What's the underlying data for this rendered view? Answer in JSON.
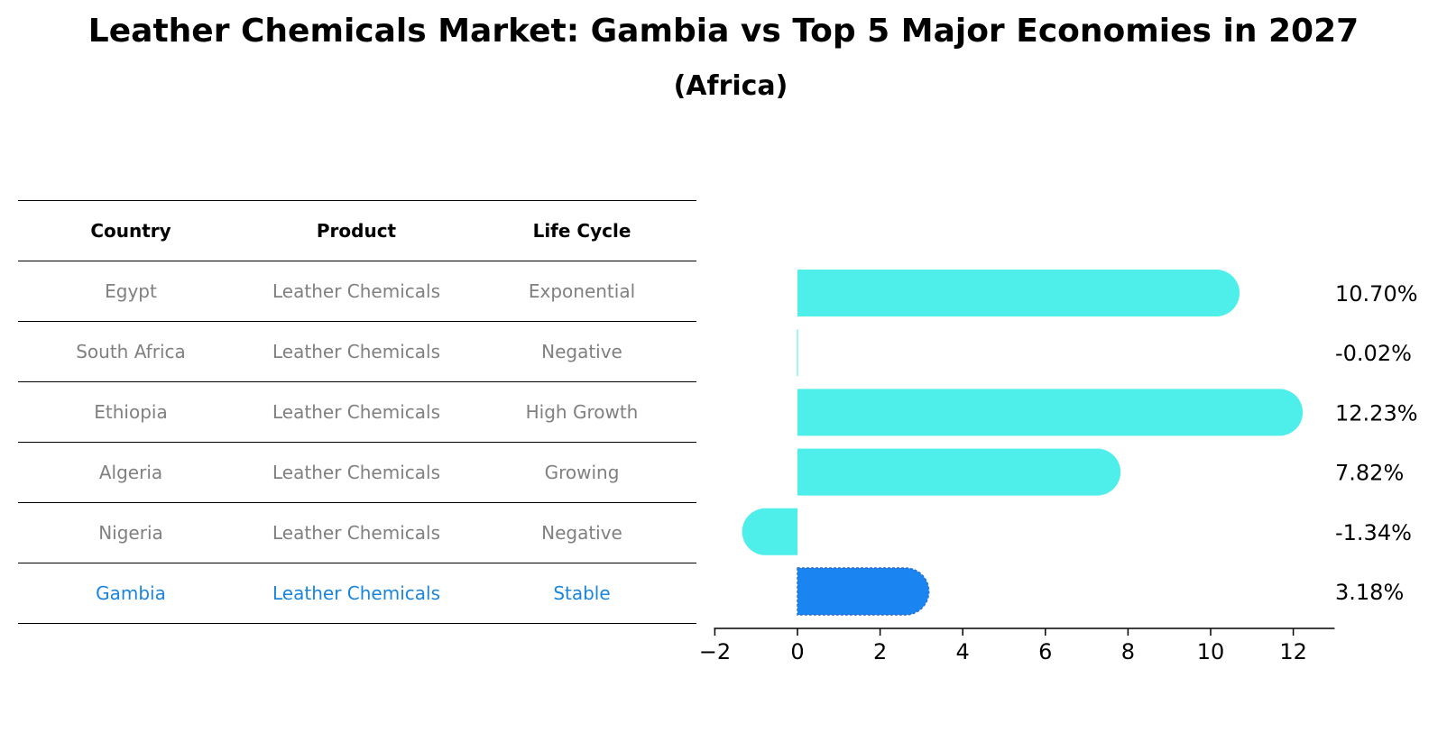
{
  "title": "Leather Chemicals Market: Gambia vs Top 5 Major Economies in 2027",
  "subtitle": "(Africa)",
  "colors": {
    "bar": "#4eeeea",
    "highlight_bar": "#1a85f0",
    "highlight_text": "#1a85dd",
    "muted_text": "#808080"
  },
  "table": {
    "headers": [
      "Country",
      "Product",
      "Life Cycle"
    ],
    "rows": [
      {
        "country": "Egypt",
        "product": "Leather Chemicals",
        "life_cycle": "Exponential"
      },
      {
        "country": "South Africa",
        "product": "Leather Chemicals",
        "life_cycle": "Negative"
      },
      {
        "country": "Ethiopia",
        "product": "Leather Chemicals",
        "life_cycle": "High Growth"
      },
      {
        "country": "Algeria",
        "product": "Leather Chemicals",
        "life_cycle": "Growing"
      },
      {
        "country": "Nigeria",
        "product": "Leather Chemicals",
        "life_cycle": "Negative"
      },
      {
        "country": "Gambia",
        "product": "Leather Chemicals",
        "life_cycle": "Stable"
      }
    ]
  },
  "chart_data": {
    "type": "bar",
    "orientation": "horizontal",
    "categories": [
      "Egypt",
      "South Africa",
      "Ethiopia",
      "Algeria",
      "Nigeria",
      "Gambia"
    ],
    "values": [
      10.7,
      -0.02,
      12.23,
      7.82,
      -1.34,
      3.18
    ],
    "labels": [
      "10.70%",
      "-0.02%",
      "12.23%",
      "7.82%",
      "-1.34%",
      "3.18%"
    ],
    "highlight": "Gambia",
    "xlim": [
      -2,
      13
    ],
    "xticks": [
      -2,
      0,
      2,
      4,
      6,
      8,
      10,
      12
    ],
    "xtick_labels": [
      "−2",
      "0",
      "2",
      "4",
      "6",
      "8",
      "10",
      "12"
    ],
    "xlabel": "",
    "ylabel": ""
  }
}
